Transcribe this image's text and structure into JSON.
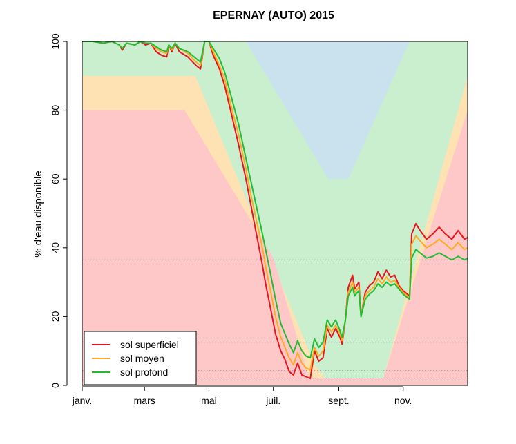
{
  "chart_data": {
    "type": "line",
    "title": "EPERNAY (AUTO) 2015",
    "ylabel": "% d'eau disponible",
    "xlabel": "",
    "ylim": [
      0,
      100
    ],
    "xlim_days": [
      0,
      365
    ],
    "y_ticks": [
      0,
      20,
      40,
      60,
      80,
      100
    ],
    "x_ticks": [
      {
        "day": 0,
        "label": "janv."
      },
      {
        "day": 59,
        "label": "mars"
      },
      {
        "day": 120,
        "label": "mai"
      },
      {
        "day": 181,
        "label": "juil."
      },
      {
        "day": 243,
        "label": "sept."
      },
      {
        "day": 304,
        "label": "nov."
      }
    ],
    "reference_lines": [
      36.5,
      12.5,
      4.2,
      1.5
    ],
    "background_zones": [
      {
        "name": "red",
        "color": "#ffc8c8"
      },
      {
        "name": "orange",
        "color": "#ffe2b4"
      },
      {
        "name": "green",
        "color": "#c9efcf"
      },
      {
        "name": "blue",
        "color": "#c9e2ee"
      }
    ],
    "zone_bounds": {
      "red_top": [
        [
          0,
          80
        ],
        [
          97,
          80
        ],
        [
          181,
          37
        ],
        [
          215,
          2
        ],
        [
          285,
          2
        ],
        [
          365,
          80
        ]
      ],
      "orange_top": [
        [
          0,
          90
        ],
        [
          107,
          90
        ],
        [
          220,
          6
        ],
        [
          230,
          2
        ],
        [
          285,
          2
        ],
        [
          365,
          90
        ]
      ],
      "green_top": [
        [
          0,
          100
        ],
        [
          365,
          100
        ]
      ],
      "blue_region": [
        [
          155,
          100
        ],
        [
          310,
          100
        ],
        [
          252,
          60
        ],
        [
          233,
          60
        ]
      ]
    },
    "legend": {
      "position": "bottom-left"
    },
    "series": [
      {
        "name": "sol superficiel",
        "color": "#e8141c",
        "points": [
          [
            0,
            100
          ],
          [
            10,
            100
          ],
          [
            20,
            99.5
          ],
          [
            28,
            100
          ],
          [
            35,
            99
          ],
          [
            38,
            97.5
          ],
          [
            42,
            99.5
          ],
          [
            50,
            99
          ],
          [
            55,
            100
          ],
          [
            60,
            99
          ],
          [
            65,
            99.5
          ],
          [
            70,
            97
          ],
          [
            75,
            96
          ],
          [
            80,
            95.5
          ],
          [
            82,
            99
          ],
          [
            85,
            97
          ],
          [
            88,
            99.5
          ],
          [
            92,
            97
          ],
          [
            100,
            95.5
          ],
          [
            108,
            93
          ],
          [
            112,
            92
          ],
          [
            116,
            100
          ],
          [
            120,
            100
          ],
          [
            124,
            96
          ],
          [
            130,
            92
          ],
          [
            135,
            87
          ],
          [
            142,
            78
          ],
          [
            148,
            70
          ],
          [
            155,
            60
          ],
          [
            160,
            52
          ],
          [
            165,
            44
          ],
          [
            170,
            36
          ],
          [
            174,
            29
          ],
          [
            178,
            23
          ],
          [
            183,
            15
          ],
          [
            188,
            10
          ],
          [
            192,
            7.5
          ],
          [
            196,
            4
          ],
          [
            200,
            3
          ],
          [
            204,
            6.5
          ],
          [
            208,
            3
          ],
          [
            212,
            2.5
          ],
          [
            216,
            2
          ],
          [
            220,
            10
          ],
          [
            224,
            7
          ],
          [
            228,
            8
          ],
          [
            232,
            16.5
          ],
          [
            236,
            14
          ],
          [
            240,
            16.5
          ],
          [
            244,
            14
          ],
          [
            246,
            12
          ],
          [
            249,
            18.5
          ],
          [
            252,
            28.5
          ],
          [
            256,
            32
          ],
          [
            258,
            28
          ],
          [
            262,
            30
          ],
          [
            264,
            20
          ],
          [
            268,
            27
          ],
          [
            272,
            29
          ],
          [
            276,
            30
          ],
          [
            280,
            33
          ],
          [
            284,
            31
          ],
          [
            288,
            33.5
          ],
          [
            292,
            31.5
          ],
          [
            296,
            32
          ],
          [
            300,
            29
          ],
          [
            304,
            27.5
          ],
          [
            310,
            26
          ],
          [
            312,
            44
          ],
          [
            316,
            47
          ],
          [
            320,
            45
          ],
          [
            326,
            42.5
          ],
          [
            332,
            44
          ],
          [
            338,
            46
          ],
          [
            344,
            44
          ],
          [
            350,
            42.5
          ],
          [
            356,
            45
          ],
          [
            362,
            42.5
          ],
          [
            365,
            43
          ]
        ]
      },
      {
        "name": "sol moyen",
        "color": "#ffaa22",
        "points": [
          [
            0,
            100
          ],
          [
            10,
            100
          ],
          [
            20,
            99.5
          ],
          [
            28,
            100
          ],
          [
            35,
            99
          ],
          [
            38,
            98
          ],
          [
            42,
            99.5
          ],
          [
            50,
            99
          ],
          [
            55,
            100
          ],
          [
            60,
            99.5
          ],
          [
            65,
            99.5
          ],
          [
            70,
            98
          ],
          [
            75,
            97
          ],
          [
            80,
            96.5
          ],
          [
            82,
            99
          ],
          [
            85,
            97.5
          ],
          [
            88,
            99.5
          ],
          [
            92,
            98
          ],
          [
            100,
            96.5
          ],
          [
            108,
            94
          ],
          [
            112,
            93
          ],
          [
            116,
            100
          ],
          [
            120,
            100
          ],
          [
            124,
            97
          ],
          [
            130,
            93
          ],
          [
            135,
            89
          ],
          [
            142,
            80
          ],
          [
            148,
            73
          ],
          [
            155,
            63
          ],
          [
            160,
            55
          ],
          [
            165,
            48
          ],
          [
            170,
            41
          ],
          [
            174,
            34
          ],
          [
            178,
            28
          ],
          [
            183,
            20
          ],
          [
            188,
            14
          ],
          [
            192,
            11
          ],
          [
            196,
            8
          ],
          [
            200,
            6
          ],
          [
            204,
            9.5
          ],
          [
            208,
            6.5
          ],
          [
            212,
            5
          ],
          [
            216,
            4.5
          ],
          [
            220,
            11
          ],
          [
            224,
            8.5
          ],
          [
            228,
            10
          ],
          [
            232,
            17.5
          ],
          [
            236,
            15.5
          ],
          [
            240,
            17.5
          ],
          [
            244,
            15
          ],
          [
            246,
            13
          ],
          [
            249,
            18.5
          ],
          [
            252,
            27
          ],
          [
            256,
            30
          ],
          [
            258,
            27
          ],
          [
            262,
            28.5
          ],
          [
            264,
            20
          ],
          [
            268,
            26
          ],
          [
            272,
            27.5
          ],
          [
            276,
            28.5
          ],
          [
            280,
            31
          ],
          [
            284,
            29.5
          ],
          [
            288,
            31.5
          ],
          [
            292,
            30
          ],
          [
            296,
            30.5
          ],
          [
            300,
            28.5
          ],
          [
            304,
            27
          ],
          [
            310,
            25.5
          ],
          [
            312,
            41
          ],
          [
            316,
            43.5
          ],
          [
            320,
            42
          ],
          [
            326,
            40
          ],
          [
            332,
            41
          ],
          [
            338,
            42.5
          ],
          [
            344,
            41
          ],
          [
            350,
            39.5
          ],
          [
            356,
            41.5
          ],
          [
            362,
            39.5
          ],
          [
            365,
            40
          ]
        ]
      },
      {
        "name": "sol profond",
        "color": "#22bb33",
        "points": [
          [
            0,
            100
          ],
          [
            10,
            100
          ],
          [
            20,
            99.5
          ],
          [
            28,
            100
          ],
          [
            35,
            99
          ],
          [
            38,
            98
          ],
          [
            42,
            99.5
          ],
          [
            50,
            99
          ],
          [
            55,
            100
          ],
          [
            60,
            99.5
          ],
          [
            65,
            99.5
          ],
          [
            70,
            98.5
          ],
          [
            75,
            97.5
          ],
          [
            80,
            97
          ],
          [
            82,
            99
          ],
          [
            85,
            98
          ],
          [
            88,
            99.5
          ],
          [
            92,
            98
          ],
          [
            100,
            97
          ],
          [
            108,
            95
          ],
          [
            112,
            94
          ],
          [
            116,
            100
          ],
          [
            120,
            100
          ],
          [
            124,
            98
          ],
          [
            130,
            95
          ],
          [
            135,
            91
          ],
          [
            142,
            83
          ],
          [
            148,
            76
          ],
          [
            155,
            66
          ],
          [
            160,
            59
          ],
          [
            165,
            52
          ],
          [
            170,
            45
          ],
          [
            174,
            39
          ],
          [
            178,
            33
          ],
          [
            183,
            25
          ],
          [
            188,
            18
          ],
          [
            192,
            15
          ],
          [
            196,
            12
          ],
          [
            200,
            9.5
          ],
          [
            204,
            13
          ],
          [
            208,
            10
          ],
          [
            212,
            8.5
          ],
          [
            216,
            8
          ],
          [
            220,
            13.5
          ],
          [
            224,
            11
          ],
          [
            228,
            12.5
          ],
          [
            232,
            19
          ],
          [
            236,
            17
          ],
          [
            240,
            19
          ],
          [
            244,
            16
          ],
          [
            246,
            14
          ],
          [
            249,
            18.5
          ],
          [
            252,
            26
          ],
          [
            256,
            28.5
          ],
          [
            258,
            26
          ],
          [
            262,
            27.5
          ],
          [
            264,
            20
          ],
          [
            268,
            25
          ],
          [
            272,
            26.5
          ],
          [
            276,
            27.5
          ],
          [
            280,
            29.5
          ],
          [
            284,
            28.5
          ],
          [
            288,
            30
          ],
          [
            292,
            29
          ],
          [
            296,
            29.5
          ],
          [
            300,
            28
          ],
          [
            304,
            26.5
          ],
          [
            310,
            25
          ],
          [
            312,
            37
          ],
          [
            316,
            39.5
          ],
          [
            320,
            38.5
          ],
          [
            326,
            37
          ],
          [
            332,
            37.5
          ],
          [
            338,
            38.5
          ],
          [
            344,
            37.5
          ],
          [
            350,
            36.5
          ],
          [
            356,
            37.5
          ],
          [
            362,
            36.5
          ],
          [
            365,
            37
          ]
        ]
      }
    ]
  }
}
